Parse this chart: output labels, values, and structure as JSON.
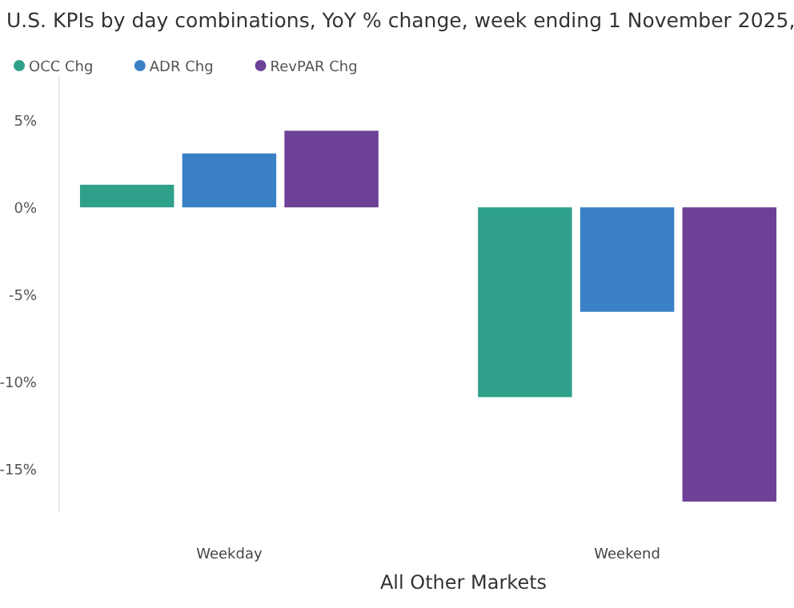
{
  "chart_data": {
    "type": "bar",
    "title": "U.S. KPIs by day combinations, YoY % change, week ending 1 November 2025,",
    "xlabel": "All Other Markets",
    "categories": [
      "Weekday",
      "Weekend"
    ],
    "series": [
      {
        "name": "OCC Chg",
        "color": "#2fa08a",
        "values": [
          1.3,
          -10.9
        ]
      },
      {
        "name": "ADR Chg",
        "color": "#3a80c6",
        "values": [
          3.1,
          -6.0
        ]
      },
      {
        "name": "RevPAR Chg",
        "color": "#6c4196",
        "values": [
          4.4,
          -16.9
        ]
      }
    ],
    "ylim": [
      -17.5,
      7.5
    ],
    "yticks": [
      {
        "value": 5,
        "label": "5%"
      },
      {
        "value": 0,
        "label": "0%"
      },
      {
        "value": -5,
        "label": "-5%"
      },
      {
        "value": -10,
        "label": "-10%"
      },
      {
        "value": -15,
        "label": "-15%"
      }
    ],
    "grid": false,
    "legend": "top left"
  }
}
